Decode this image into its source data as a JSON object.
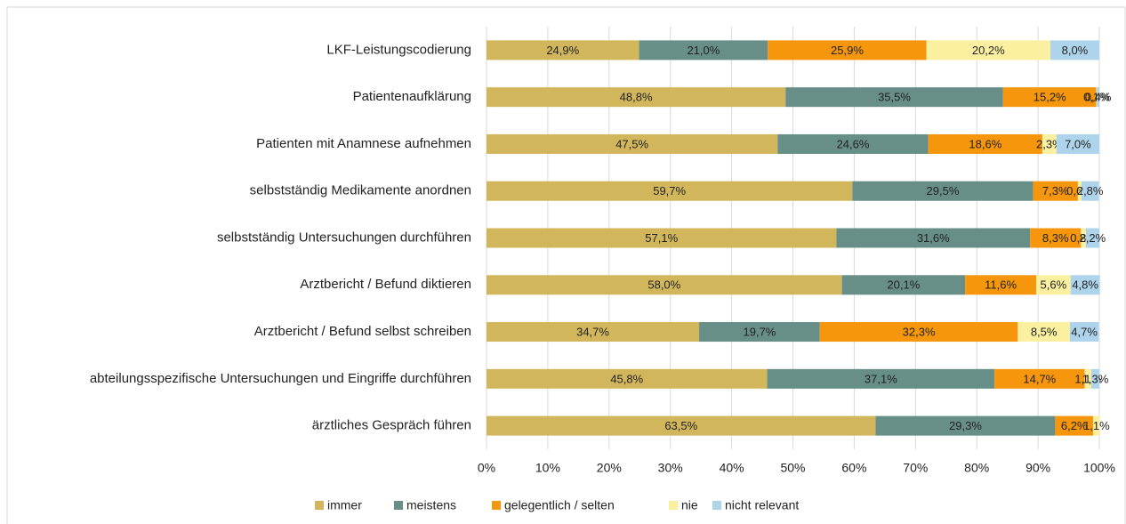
{
  "chart_data": {
    "type": "stacked-bar-horizontal",
    "categories": [
      "LKF-Leistungscodierung",
      "Patientenaufklärung",
      "Patienten mit Anamnese aufnehmen",
      "selbstständig Medikamente anordnen",
      "selbstständig Untersuchungen durchführen",
      "Arztbericht / Befund diktieren",
      "Arztbericht / Befund selbst schreiben",
      "abteilungsspezifische Untersuchungen und Eingriffe durchführen",
      "ärztliches Gespräch führen"
    ],
    "series": [
      {
        "name": "immer",
        "color": "#d2b65c",
        "values": [
          24.9,
          48.8,
          47.5,
          59.7,
          57.1,
          58.0,
          34.7,
          45.8,
          63.5
        ],
        "value_labels": [
          "24,9%",
          "48,8%",
          "47,5%",
          "59,7%",
          "57,1%",
          "58,0%",
          "34,7%",
          "45,8%",
          "63,5%"
        ]
      },
      {
        "name": "meistens",
        "color": "#678f88",
        "values": [
          21.0,
          35.5,
          24.6,
          29.5,
          31.6,
          20.1,
          19.7,
          37.1,
          29.3
        ],
        "value_labels": [
          "21,0%",
          "35,5%",
          "24,6%",
          "29,5%",
          "31,6%",
          "20,1%",
          "19,7%",
          "37,1%",
          "29,3%"
        ]
      },
      {
        "name": "gelegentlich / selten",
        "color": "#f5960c",
        "values": [
          25.9,
          15.2,
          18.6,
          7.3,
          8.3,
          11.6,
          32.3,
          14.7,
          6.2
        ],
        "value_labels": [
          "25,9%",
          "15,2%",
          "18,6%",
          "7,3%",
          "8,3%",
          "11,6%",
          "32,3%",
          "14,7%",
          "6,2%"
        ]
      },
      {
        "name": "nie",
        "color": "#fbf0a0",
        "values": [
          20.2,
          0.1,
          2.3,
          0.6,
          0.8,
          5.6,
          8.5,
          1.1,
          1.1
        ],
        "value_labels": [
          "20,2%",
          "0,1%",
          "2,3%",
          "0,6%",
          "0,8%",
          "5,6%",
          "8,5%",
          "1,1%",
          "1,1%"
        ]
      },
      {
        "name": "nicht relevant",
        "color": "#aed4ec",
        "values": [
          8.0,
          0.4,
          7.0,
          2.8,
          2.2,
          4.8,
          4.7,
          1.3,
          null
        ],
        "value_labels": [
          "8,0%",
          "0,4%",
          "7,0%",
          "2,8%",
          "2,2%",
          "4,8%",
          "4,7%",
          "1,3%",
          null
        ]
      }
    ],
    "xlim": [
      0,
      100
    ],
    "xticks": [
      {
        "value": 0,
        "label": "0%"
      },
      {
        "value": 10,
        "label": "10%"
      },
      {
        "value": 20,
        "label": "20%"
      },
      {
        "value": 30,
        "label": "30%"
      },
      {
        "value": 40,
        "label": "40%"
      },
      {
        "value": 50,
        "label": "50%"
      },
      {
        "value": 60,
        "label": "60%"
      },
      {
        "value": 70,
        "label": "70%"
      },
      {
        "value": 80,
        "label": "80%"
      },
      {
        "value": 90,
        "label": "90%"
      },
      {
        "value": 100,
        "label": "100%"
      }
    ],
    "grid": true,
    "legend": "bottom"
  }
}
